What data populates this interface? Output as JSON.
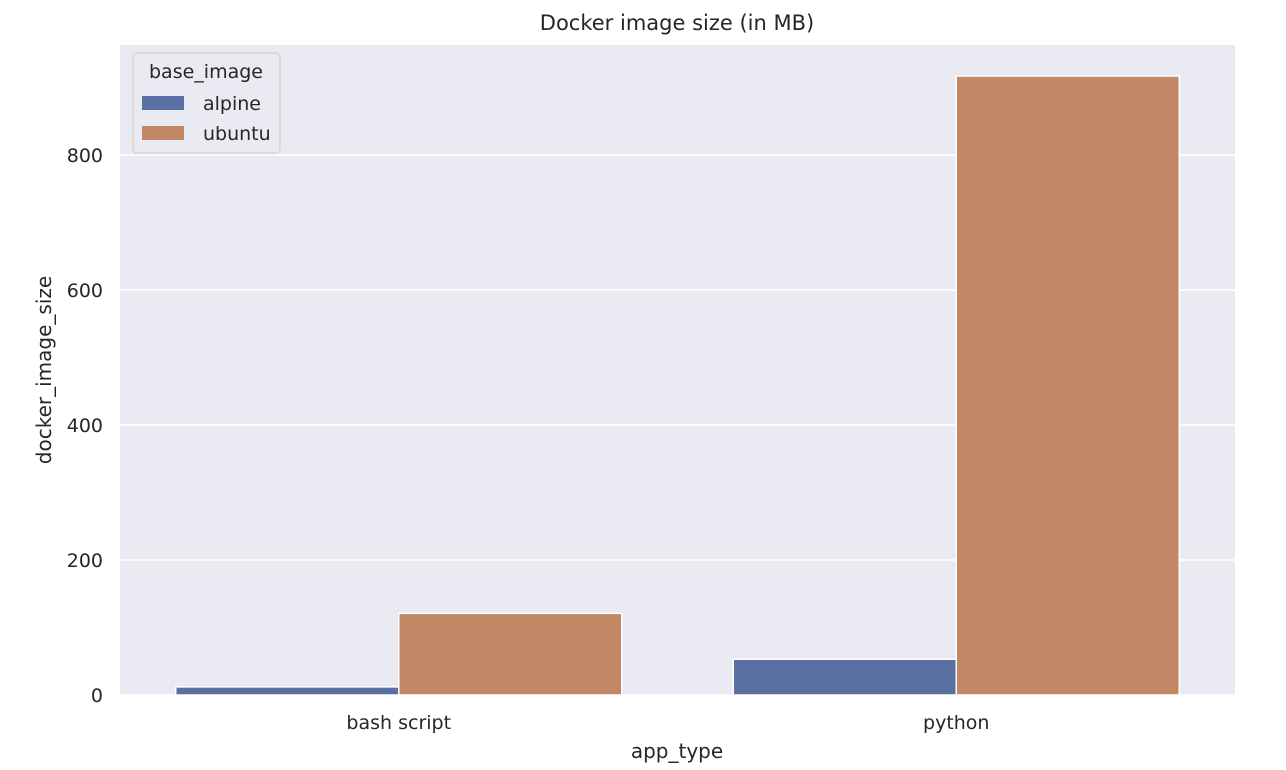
{
  "chart_data": {
    "type": "bar",
    "title": "Docker image size (in MB)",
    "xlabel": "app_type",
    "ylabel": "docker_image_size",
    "categories": [
      "bash script",
      "python"
    ],
    "series": [
      {
        "name": "alpine",
        "values": [
          12,
          53
        ],
        "color": "#5a70a3"
      },
      {
        "name": "ubuntu",
        "values": [
          121,
          917
        ],
        "color": "#c28865"
      }
    ],
    "ylim": [
      0,
      963
    ],
    "yticks": [
      0,
      200,
      400,
      600,
      800
    ],
    "grid": true,
    "legend": {
      "title": "base_image",
      "position": "upper-left"
    },
    "background": "#eaeaf2",
    "grid_color": "#ffffff"
  }
}
